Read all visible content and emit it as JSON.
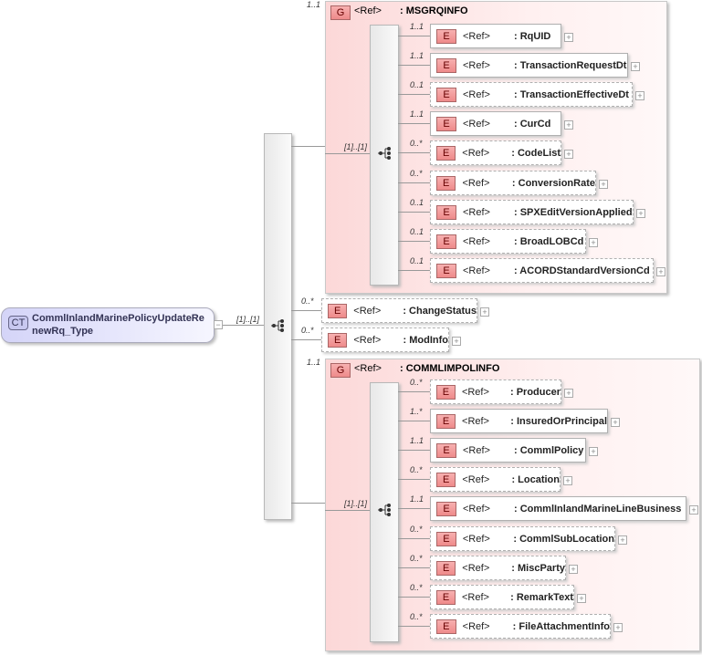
{
  "root": {
    "badge": "CT",
    "name_line1": "CommlInlandMarinePolicyUpdateRe",
    "name_line2": "newRq_Type",
    "cardinality": "[1]..[1]"
  },
  "ref_label": "<Ref>",
  "element_badge": "E",
  "group_badge": "G",
  "groups": [
    {
      "name": ": MSGRQINFO",
      "cardinality": "1..1",
      "seq_cardinality": "[1]..[1]",
      "elements": [
        {
          "name": ": RqUID",
          "card": "1..1"
        },
        {
          "name": ": TransactionRequestDt",
          "card": "1..1"
        },
        {
          "name": ": TransactionEffectiveDt",
          "card": "0..1"
        },
        {
          "name": ": CurCd",
          "card": "1..1"
        },
        {
          "name": ": CodeList",
          "card": "0..*"
        },
        {
          "name": ": ConversionRate",
          "card": "0..*"
        },
        {
          "name": ": SPXEditVersionApplied",
          "card": "0..1"
        },
        {
          "name": ": BroadLOBCd",
          "card": "0..1"
        },
        {
          "name": ": ACORDStandardVersionCd",
          "card": "0..1"
        }
      ]
    },
    {
      "name": ": COMMLIMPOLINFO",
      "cardinality": "1..1",
      "seq_cardinality": "[1]..[1]",
      "elements": [
        {
          "name": ": Producer",
          "card": "0..*"
        },
        {
          "name": ": InsuredOrPrincipal",
          "card": "1..*"
        },
        {
          "name": ": CommlPolicy",
          "card": "1..1"
        },
        {
          "name": ": Location",
          "card": "0..*"
        },
        {
          "name": ": CommlInlandMarineLineBusiness",
          "card": "1..1"
        },
        {
          "name": ": CommlSubLocation",
          "card": "0..*"
        },
        {
          "name": ": MiscParty",
          "card": "0..*"
        },
        {
          "name": ": RemarkText",
          "card": "0..*"
        },
        {
          "name": ": FileAttachmentInfo",
          "card": "0..*"
        }
      ]
    }
  ],
  "direct_elements": [
    {
      "name": ": ChangeStatus",
      "card": "0..*"
    },
    {
      "name": ": ModInfo",
      "card": "0..*"
    }
  ]
}
